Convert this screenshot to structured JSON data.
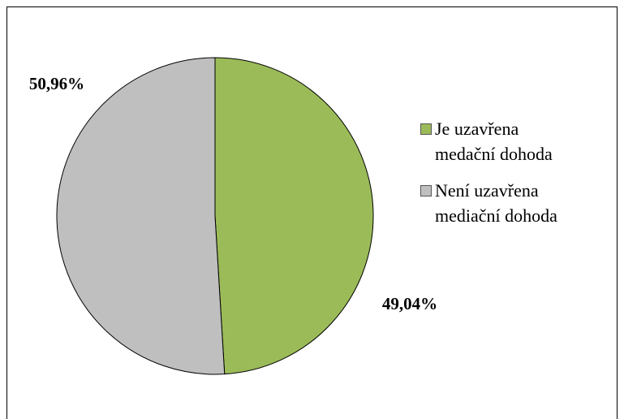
{
  "chart_data": {
    "type": "pie",
    "categories": [
      "Je uzavřena medační dohoda",
      "Není uzavřena mediační dohoda"
    ],
    "values": [
      49.04,
      50.96
    ],
    "value_labels": [
      "49,04%",
      "50,96%"
    ],
    "colors": [
      "#9bbb59",
      "#bfbfbf"
    ],
    "legend": "right"
  }
}
